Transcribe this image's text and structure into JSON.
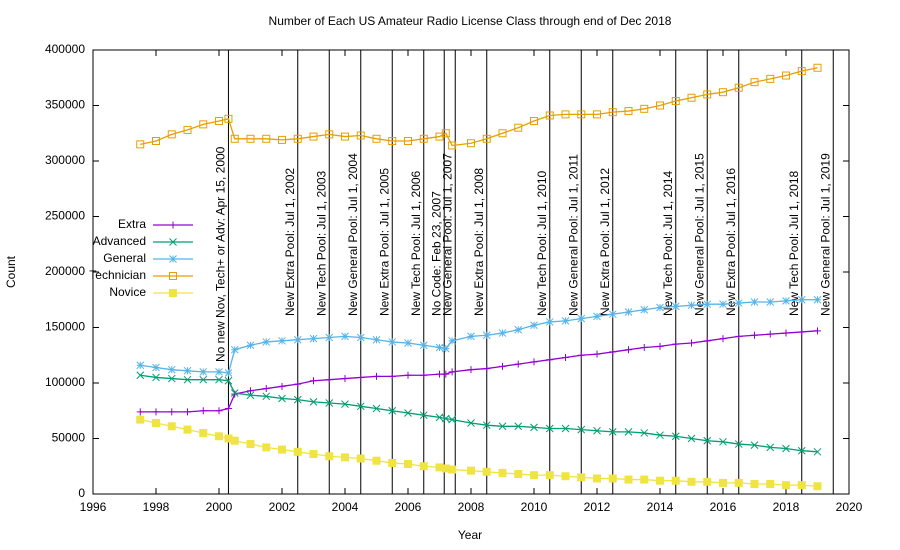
{
  "chart_data": {
    "type": "line",
    "title": "Number of Each US Amateur Radio License Class through end of Dec 2018",
    "x_label": "Year",
    "y_label": "Count",
    "xlim": [
      1996,
      2020
    ],
    "ylim": [
      0,
      400000
    ],
    "xticks": [
      1996,
      1998,
      2000,
      2002,
      2004,
      2006,
      2008,
      2010,
      2012,
      2014,
      2016,
      2018,
      2020
    ],
    "yticks": [
      0,
      50000,
      100000,
      150000,
      200000,
      250000,
      300000,
      350000,
      400000
    ],
    "grid": false,
    "legend": "upper-left",
    "x": [
      1997.5,
      1998,
      1998.5,
      1999,
      1999.5,
      2000,
      2000.3,
      2000.5,
      2001,
      2001.5,
      2002,
      2002.5,
      2003,
      2003.5,
      2004,
      2004.5,
      2005,
      2005.5,
      2006,
      2006.5,
      2007,
      2007.2,
      2007.4,
      2008,
      2008.5,
      2009,
      2009.5,
      2010,
      2010.5,
      2011,
      2011.5,
      2012,
      2012.5,
      2013,
      2013.5,
      2014,
      2014.5,
      2015,
      2015.5,
      2016,
      2016.5,
      2017,
      2017.5,
      2018,
      2018.5,
      2019
    ],
    "series": [
      {
        "name": "Extra",
        "color": "#9400d3",
        "marker": "plus",
        "values": [
          74000,
          74000,
          74000,
          74000,
          75000,
          75000,
          77000,
          90000,
          93000,
          95000,
          97000,
          99000,
          102000,
          103000,
          104000,
          105000,
          106000,
          106000,
          107000,
          107000,
          108000,
          108000,
          110000,
          112000,
          113000,
          115000,
          117000,
          119000,
          121000,
          123000,
          125000,
          126000,
          128000,
          130000,
          132000,
          133000,
          135000,
          136000,
          138000,
          140000,
          142000,
          143000,
          144000,
          145000,
          146000,
          147000
        ]
      },
      {
        "name": "Advanced",
        "color": "#009e73",
        "marker": "cross",
        "values": [
          107000,
          105000,
          104000,
          103000,
          103000,
          103000,
          102000,
          91000,
          89000,
          88000,
          86000,
          85000,
          83000,
          82000,
          81000,
          79000,
          77000,
          75000,
          73000,
          71000,
          69000,
          68000,
          67000,
          64000,
          62000,
          61000,
          61000,
          60000,
          59000,
          59000,
          58000,
          57000,
          56000,
          56000,
          55000,
          53000,
          52000,
          50000,
          48000,
          47000,
          45000,
          44000,
          42000,
          41000,
          39000,
          38000
        ]
      },
      {
        "name": "General",
        "color": "#56b4e9",
        "marker": "star",
        "values": [
          116000,
          114000,
          112000,
          111000,
          110000,
          110000,
          109000,
          130000,
          134000,
          137000,
          138000,
          139000,
          140000,
          141000,
          142000,
          141000,
          139000,
          137000,
          136000,
          134000,
          132000,
          131000,
          138000,
          142000,
          143000,
          145000,
          148000,
          152000,
          155000,
          156000,
          158000,
          160000,
          162000,
          164000,
          166000,
          168000,
          169000,
          170000,
          171000,
          171000,
          172000,
          173000,
          173000,
          174000,
          175000,
          175000
        ]
      },
      {
        "name": "Technician",
        "color": "#e69f00",
        "marker": "open-square",
        "values": [
          315000,
          318000,
          324000,
          328000,
          333000,
          336000,
          338000,
          320000,
          320000,
          320000,
          319000,
          320000,
          322000,
          324000,
          322000,
          323000,
          320000,
          318000,
          318000,
          320000,
          322000,
          325000,
          314000,
          316000,
          320000,
          325000,
          330000,
          336000,
          341000,
          342000,
          342000,
          342000,
          344000,
          345000,
          347000,
          350000,
          354000,
          357000,
          360000,
          362000,
          366000,
          371000,
          374000,
          377000,
          381000,
          384000
        ]
      },
      {
        "name": "Novice",
        "color": "#f0e442",
        "marker": "filled-square",
        "values": [
          67000,
          64000,
          61000,
          58000,
          55000,
          52000,
          50000,
          48000,
          45000,
          42000,
          40000,
          38000,
          36000,
          34000,
          33000,
          32000,
          30000,
          28000,
          27000,
          25000,
          24000,
          23000,
          22000,
          21000,
          20000,
          19000,
          18000,
          17000,
          17000,
          16000,
          15000,
          14000,
          14000,
          13000,
          13000,
          12000,
          12000,
          11000,
          11000,
          10000,
          10000,
          9000,
          9000,
          8000,
          8000,
          7000
        ]
      }
    ],
    "annotations": [
      {
        "x": 2000.3,
        "text": "No new Nov, Tech+ or Adv: Apr 15, 2000",
        "color": "#000000"
      },
      {
        "x": 2002.5,
        "text": "New Extra Pool: Jul 1, 2002",
        "color": "#000000"
      },
      {
        "x": 2003.5,
        "text": "New Tech Pool: Jul 1, 2003",
        "color": "#000000"
      },
      {
        "x": 2004.5,
        "text": "New General Pool: Jul 1, 2004",
        "color": "#000000"
      },
      {
        "x": 2005.5,
        "text": "New Extra Pool: Jul 1, 2005",
        "color": "#000000"
      },
      {
        "x": 2006.5,
        "text": "New Tech Pool: Jul 1, 2006",
        "color": "#000000"
      },
      {
        "x": 2007.15,
        "text": "No Code: Feb 23, 2007",
        "color": "#ff0000"
      },
      {
        "x": 2007.5,
        "text": "New General Pool: Jul 1, 2007",
        "color": "#000000"
      },
      {
        "x": 2008.5,
        "text": "New Extra Pool: Jul 1, 2008",
        "color": "#000000"
      },
      {
        "x": 2010.5,
        "text": "New Tech Pool: Jul 1, 2010",
        "color": "#000000"
      },
      {
        "x": 2011.5,
        "text": "New General Pool: Jul 1, 2011",
        "color": "#000000"
      },
      {
        "x": 2012.5,
        "text": "New Extra Pool: Jul 1, 2012",
        "color": "#000000"
      },
      {
        "x": 2014.5,
        "text": "New Tech Pool: Jul 1, 2014",
        "color": "#000000"
      },
      {
        "x": 2015.5,
        "text": "New General Pool: Jul 1, 2015",
        "color": "#000000"
      },
      {
        "x": 2016.5,
        "text": "New Extra Pool: Jul 1, 2016",
        "color": "#000000"
      },
      {
        "x": 2018.5,
        "text": "New Tech Pool: Jul 1, 2018",
        "color": "#000000"
      },
      {
        "x": 2019.5,
        "text": "New General Pool: Jul 1, 2019",
        "color": "#000000"
      }
    ]
  }
}
